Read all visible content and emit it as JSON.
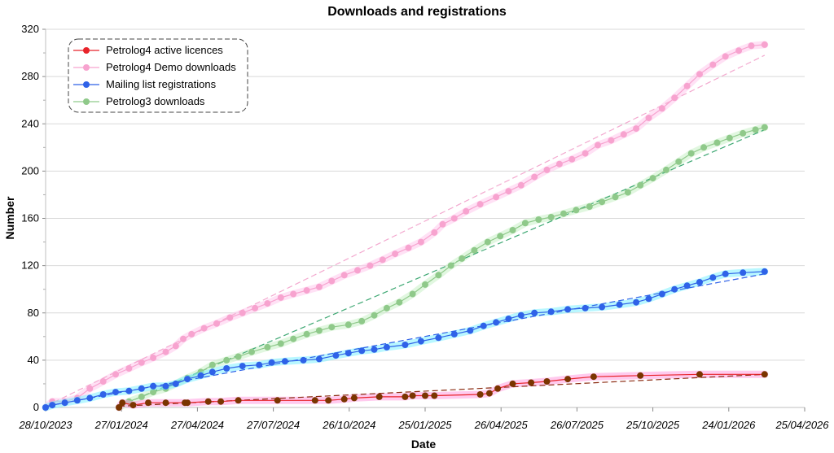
{
  "chart_data": {
    "type": "scatter",
    "title": "Downloads and registrations",
    "xlabel": "Date",
    "ylabel": "Number",
    "ylim": [
      0,
      320
    ],
    "yticks": [
      0,
      40,
      80,
      120,
      160,
      200,
      240,
      280,
      320
    ],
    "xlim": [
      "2023-10-28",
      "2026-04-25"
    ],
    "xticks": [
      {
        "date": "2023-10-28",
        "label": "28/10/2023"
      },
      {
        "date": "2024-01-27",
        "label": "27/01/2024"
      },
      {
        "date": "2024-04-27",
        "label": "27/04/2024"
      },
      {
        "date": "2024-07-27",
        "label": "27/07/2024"
      },
      {
        "date": "2024-10-26",
        "label": "26/10/2024"
      },
      {
        "date": "2025-01-25",
        "label": "25/01/2025"
      },
      {
        "date": "2025-04-26",
        "label": "26/04/2025"
      },
      {
        "date": "2025-07-26",
        "label": "26/07/2025"
      },
      {
        "date": "2025-10-25",
        "label": "25/10/2025"
      },
      {
        "date": "2026-01-24",
        "label": "24/01/2026"
      },
      {
        "date": "2026-04-25",
        "label": "25/04/2026"
      }
    ],
    "grid": true,
    "legend_position": "top-left",
    "series": [
      {
        "name": "Petrolog4 active licences",
        "color": "#e8232a",
        "halo": "#ff9ee0",
        "trend_color": "#8b2a10",
        "trend": [
          [
            "2024-01-24",
            1
          ],
          [
            "2026-03-08",
            28
          ]
        ],
        "points": [
          [
            "2024-01-24",
            0
          ],
          [
            "2024-01-28",
            4
          ],
          [
            "2024-02-10",
            2
          ],
          [
            "2024-02-28",
            4
          ],
          [
            "2024-03-20",
            4
          ],
          [
            "2024-04-12",
            4
          ],
          [
            "2024-04-15",
            4
          ],
          [
            "2024-05-10",
            5
          ],
          [
            "2024-05-25",
            5
          ],
          [
            "2024-06-15",
            6
          ],
          [
            "2024-08-01",
            6
          ],
          [
            "2024-09-15",
            6
          ],
          [
            "2024-10-01",
            6
          ],
          [
            "2024-10-20",
            7
          ],
          [
            "2024-11-01",
            8
          ],
          [
            "2024-12-01",
            9
          ],
          [
            "2025-01-01",
            9
          ],
          [
            "2025-01-10",
            10
          ],
          [
            "2025-01-25",
            10
          ],
          [
            "2025-02-05",
            10
          ],
          [
            "2025-04-01",
            11
          ],
          [
            "2025-04-12",
            12
          ],
          [
            "2025-04-22",
            16
          ],
          [
            "2025-05-10",
            20
          ],
          [
            "2025-06-01",
            21
          ],
          [
            "2025-06-20",
            22
          ],
          [
            "2025-07-15",
            24
          ],
          [
            "2025-08-15",
            26
          ],
          [
            "2025-10-10",
            27
          ],
          [
            "2025-12-20",
            28
          ],
          [
            "2026-03-08",
            28
          ]
        ]
      },
      {
        "name": "Petrolog4 Demo downloads",
        "color": "#f7a3cf",
        "halo": "#ffc8ec",
        "trend_color": "#f3a9cf",
        "trend": [
          [
            "2023-10-28",
            1
          ],
          [
            "2026-03-08",
            298
          ]
        ],
        "points": [
          [
            "2023-10-28",
            0
          ],
          [
            "2023-11-05",
            5
          ],
          [
            "2023-11-20",
            5
          ],
          [
            "2023-12-05",
            8
          ],
          [
            "2023-12-20",
            16
          ],
          [
            "2024-01-05",
            22
          ],
          [
            "2024-01-20",
            28
          ],
          [
            "2024-02-05",
            33
          ],
          [
            "2024-02-20",
            38
          ],
          [
            "2024-03-05",
            42
          ],
          [
            "2024-03-20",
            47
          ],
          [
            "2024-04-01",
            52
          ],
          [
            "2024-04-10",
            58
          ],
          [
            "2024-04-20",
            62
          ],
          [
            "2024-05-05",
            67
          ],
          [
            "2024-05-20",
            71
          ],
          [
            "2024-06-05",
            76
          ],
          [
            "2024-06-20",
            80
          ],
          [
            "2024-07-05",
            84
          ],
          [
            "2024-07-20",
            88
          ],
          [
            "2024-08-05",
            93
          ],
          [
            "2024-08-20",
            96
          ],
          [
            "2024-09-05",
            99
          ],
          [
            "2024-09-20",
            102
          ],
          [
            "2024-10-05",
            107
          ],
          [
            "2024-10-20",
            112
          ],
          [
            "2024-11-05",
            116
          ],
          [
            "2024-11-20",
            120
          ],
          [
            "2024-12-05",
            125
          ],
          [
            "2024-12-20",
            130
          ],
          [
            "2025-01-05",
            135
          ],
          [
            "2025-01-20",
            140
          ],
          [
            "2025-02-05",
            148
          ],
          [
            "2025-02-15",
            155
          ],
          [
            "2025-03-01",
            160
          ],
          [
            "2025-03-15",
            166
          ],
          [
            "2025-04-01",
            172
          ],
          [
            "2025-04-20",
            178
          ],
          [
            "2025-05-05",
            183
          ],
          [
            "2025-05-20",
            188
          ],
          [
            "2025-06-05",
            195
          ],
          [
            "2025-06-20",
            201
          ],
          [
            "2025-07-05",
            206
          ],
          [
            "2025-07-20",
            210
          ],
          [
            "2025-08-05",
            215
          ],
          [
            "2025-08-20",
            222
          ],
          [
            "2025-09-05",
            226
          ],
          [
            "2025-09-20",
            231
          ],
          [
            "2025-10-05",
            236
          ],
          [
            "2025-10-20",
            245
          ],
          [
            "2025-11-05",
            253
          ],
          [
            "2025-11-20",
            262
          ],
          [
            "2025-12-05",
            272
          ],
          [
            "2025-12-20",
            282
          ],
          [
            "2026-01-05",
            290
          ],
          [
            "2026-01-20",
            297
          ],
          [
            "2026-02-05",
            302
          ],
          [
            "2026-02-20",
            306
          ],
          [
            "2026-03-08",
            307
          ]
        ]
      },
      {
        "name": "Mailing list registrations",
        "color": "#2f62e8",
        "halo": "#7df0ff",
        "trend_color": "#2f62e8",
        "trend": [
          [
            "2023-10-28",
            1
          ],
          [
            "2026-03-08",
            113
          ]
        ],
        "points": [
          [
            "2023-10-28",
            0
          ],
          [
            "2023-11-05",
            2
          ],
          [
            "2023-11-20",
            4
          ],
          [
            "2023-12-05",
            6
          ],
          [
            "2023-12-20",
            8
          ],
          [
            "2024-01-05",
            11
          ],
          [
            "2024-01-20",
            13
          ],
          [
            "2024-02-05",
            14
          ],
          [
            "2024-02-20",
            16
          ],
          [
            "2024-03-05",
            18
          ],
          [
            "2024-03-20",
            18
          ],
          [
            "2024-04-01",
            20
          ],
          [
            "2024-04-15",
            24
          ],
          [
            "2024-05-01",
            27
          ],
          [
            "2024-05-15",
            30
          ],
          [
            "2024-06-01",
            33
          ],
          [
            "2024-06-20",
            35
          ],
          [
            "2024-07-10",
            36
          ],
          [
            "2024-07-25",
            38
          ],
          [
            "2024-08-10",
            39
          ],
          [
            "2024-09-01",
            40
          ],
          [
            "2024-09-20",
            41
          ],
          [
            "2024-10-10",
            44
          ],
          [
            "2024-10-25",
            46
          ],
          [
            "2024-11-10",
            48
          ],
          [
            "2024-11-25",
            49
          ],
          [
            "2024-12-10",
            51
          ],
          [
            "2025-01-01",
            53
          ],
          [
            "2025-01-20",
            56
          ],
          [
            "2025-02-10",
            59
          ],
          [
            "2025-03-01",
            62
          ],
          [
            "2025-03-20",
            65
          ],
          [
            "2025-04-05",
            69
          ],
          [
            "2025-04-20",
            72
          ],
          [
            "2025-05-05",
            75
          ],
          [
            "2025-05-20",
            78
          ],
          [
            "2025-06-05",
            80
          ],
          [
            "2025-06-25",
            81
          ],
          [
            "2025-07-15",
            83
          ],
          [
            "2025-08-05",
            84
          ],
          [
            "2025-08-25",
            85
          ],
          [
            "2025-09-15",
            87
          ],
          [
            "2025-10-05",
            89
          ],
          [
            "2025-10-20",
            92
          ],
          [
            "2025-11-05",
            96
          ],
          [
            "2025-11-20",
            100
          ],
          [
            "2025-12-05",
            103
          ],
          [
            "2025-12-20",
            106
          ],
          [
            "2026-01-05",
            110
          ],
          [
            "2026-01-20",
            113
          ],
          [
            "2026-02-10",
            114
          ],
          [
            "2026-03-08",
            115
          ]
        ]
      },
      {
        "name": "Petrolog3 downloads",
        "color": "#8fc98a",
        "halo": "#c9f0c6",
        "trend_color": "#3ea873",
        "trend": [
          [
            "2024-01-24",
            1
          ],
          [
            "2026-03-08",
            235
          ]
        ],
        "points": [
          [
            "2024-01-24",
            0
          ],
          [
            "2024-02-05",
            5
          ],
          [
            "2024-02-20",
            9
          ],
          [
            "2024-03-05",
            13
          ],
          [
            "2024-03-20",
            16
          ],
          [
            "2024-04-01",
            20
          ],
          [
            "2024-04-15",
            25
          ],
          [
            "2024-05-01",
            30
          ],
          [
            "2024-05-15",
            36
          ],
          [
            "2024-06-01",
            40
          ],
          [
            "2024-06-15",
            43
          ],
          [
            "2024-07-01",
            47
          ],
          [
            "2024-07-20",
            51
          ],
          [
            "2024-08-05",
            54
          ],
          [
            "2024-08-20",
            58
          ],
          [
            "2024-09-05",
            62
          ],
          [
            "2024-09-20",
            65
          ],
          [
            "2024-10-05",
            68
          ],
          [
            "2024-10-25",
            70
          ],
          [
            "2024-11-10",
            73
          ],
          [
            "2024-11-25",
            78
          ],
          [
            "2024-12-10",
            84
          ],
          [
            "2024-12-25",
            89
          ],
          [
            "2025-01-10",
            96
          ],
          [
            "2025-01-25",
            104
          ],
          [
            "2025-02-10",
            112
          ],
          [
            "2025-02-25",
            120
          ],
          [
            "2025-03-10",
            126
          ],
          [
            "2025-03-25",
            133
          ],
          [
            "2025-04-10",
            140
          ],
          [
            "2025-04-25",
            145
          ],
          [
            "2025-05-10",
            150
          ],
          [
            "2025-05-25",
            156
          ],
          [
            "2025-06-10",
            159
          ],
          [
            "2025-06-25",
            161
          ],
          [
            "2025-07-10",
            164
          ],
          [
            "2025-07-25",
            167
          ],
          [
            "2025-08-10",
            170
          ],
          [
            "2025-08-25",
            174
          ],
          [
            "2025-09-10",
            178
          ],
          [
            "2025-09-25",
            182
          ],
          [
            "2025-10-10",
            188
          ],
          [
            "2025-10-25",
            194
          ],
          [
            "2025-11-10",
            201
          ],
          [
            "2025-11-25",
            208
          ],
          [
            "2025-12-10",
            215
          ],
          [
            "2025-12-25",
            220
          ],
          [
            "2026-01-10",
            224
          ],
          [
            "2026-01-25",
            228
          ],
          [
            "2026-02-10",
            232
          ],
          [
            "2026-02-25",
            235
          ],
          [
            "2026-03-08",
            237
          ]
        ]
      }
    ]
  }
}
